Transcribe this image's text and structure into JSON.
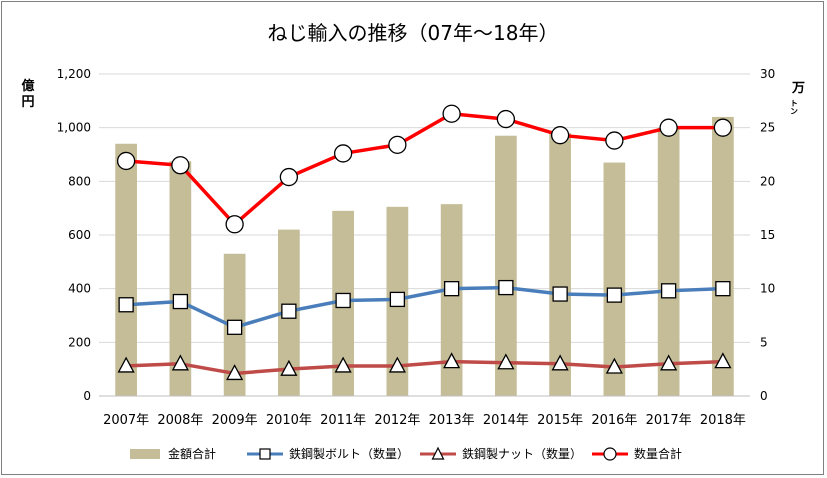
{
  "chart_data": {
    "type": "bar+line",
    "title": "ねじ輸入の推移（07年～18年）",
    "categories": [
      "2007年",
      "2008年",
      "2009年",
      "2010年",
      "2011年",
      "2012年",
      "2013年",
      "2014年",
      "2015年",
      "2016年",
      "2017年",
      "2018年"
    ],
    "left_axis": {
      "unit_line1": "億",
      "unit_line2": "円",
      "ylim": [
        0,
        1200
      ],
      "ticks": [
        "0",
        "200",
        "400",
        "600",
        "800",
        "1,000",
        "1,200"
      ],
      "tick_values": [
        0,
        200,
        400,
        600,
        800,
        1000,
        1200
      ]
    },
    "right_axis": {
      "unit_main": "万",
      "unit_sub": "トン",
      "ylim": [
        0,
        30
      ],
      "ticks": [
        "0",
        "5",
        "10",
        "15",
        "20",
        "25",
        "30"
      ],
      "tick_values": [
        0,
        5,
        10,
        15,
        20,
        25,
        30
      ]
    },
    "grid": true,
    "legend_position": "bottom",
    "series": [
      {
        "name": "金額合計",
        "type": "bar",
        "axis": "left",
        "color": "#c4bd97",
        "values": [
          940,
          875,
          530,
          620,
          690,
          705,
          715,
          970,
          980,
          870,
          1000,
          1040
        ]
      },
      {
        "name": "鉄鋼製ボルト（数量）",
        "type": "line",
        "axis": "right",
        "color": "#4a7ebb",
        "marker": "square",
        "values": [
          8.5,
          8.8,
          6.4,
          7.9,
          8.9,
          9.0,
          10.0,
          10.1,
          9.5,
          9.4,
          9.8,
          10.0
        ]
      },
      {
        "name": "鉄鋼製ナット（数量）",
        "type": "line",
        "axis": "right",
        "color": "#be4b48",
        "marker": "triangle",
        "values": [
          2.8,
          3.0,
          2.1,
          2.5,
          2.8,
          2.8,
          3.2,
          3.1,
          3.0,
          2.7,
          3.0,
          3.2
        ]
      },
      {
        "name": "数量合計",
        "type": "line",
        "axis": "right",
        "color": "#ff0000",
        "marker": "circle",
        "values": [
          21.9,
          21.5,
          16.0,
          20.4,
          22.6,
          23.4,
          26.3,
          25.8,
          24.3,
          23.8,
          25.0,
          25.0
        ]
      }
    ]
  }
}
